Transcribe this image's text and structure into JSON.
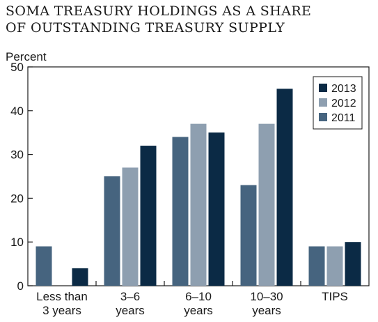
{
  "chart_data": {
    "type": "bar",
    "title_lines": [
      "SOMA TREASURY HOLDINGS AS A SHARE",
      "OF OUTSTANDING TREASURY SUPPLY"
    ],
    "ylabel": "Percent",
    "ylim": [
      0,
      50
    ],
    "yticks": [
      0,
      10,
      20,
      30,
      40,
      50
    ],
    "categories": [
      [
        "Less than",
        "3 years"
      ],
      [
        "3–6",
        "years"
      ],
      [
        "6–10",
        "years"
      ],
      [
        "10–30",
        "years"
      ],
      [
        "TIPS"
      ]
    ],
    "series": [
      {
        "name": "2011",
        "color": "#46647f",
        "values": [
          9,
          25,
          34,
          23,
          9
        ]
      },
      {
        "name": "2012",
        "color": "#8e9fb0",
        "values": [
          0,
          27,
          37,
          37,
          9
        ]
      },
      {
        "name": "2013",
        "color": "#0b2a45",
        "values": [
          4,
          32,
          35,
          45,
          10
        ]
      }
    ],
    "legend": {
      "placement": "top-right",
      "order": [
        "2013",
        "2012",
        "2011"
      ]
    },
    "grid": false
  }
}
